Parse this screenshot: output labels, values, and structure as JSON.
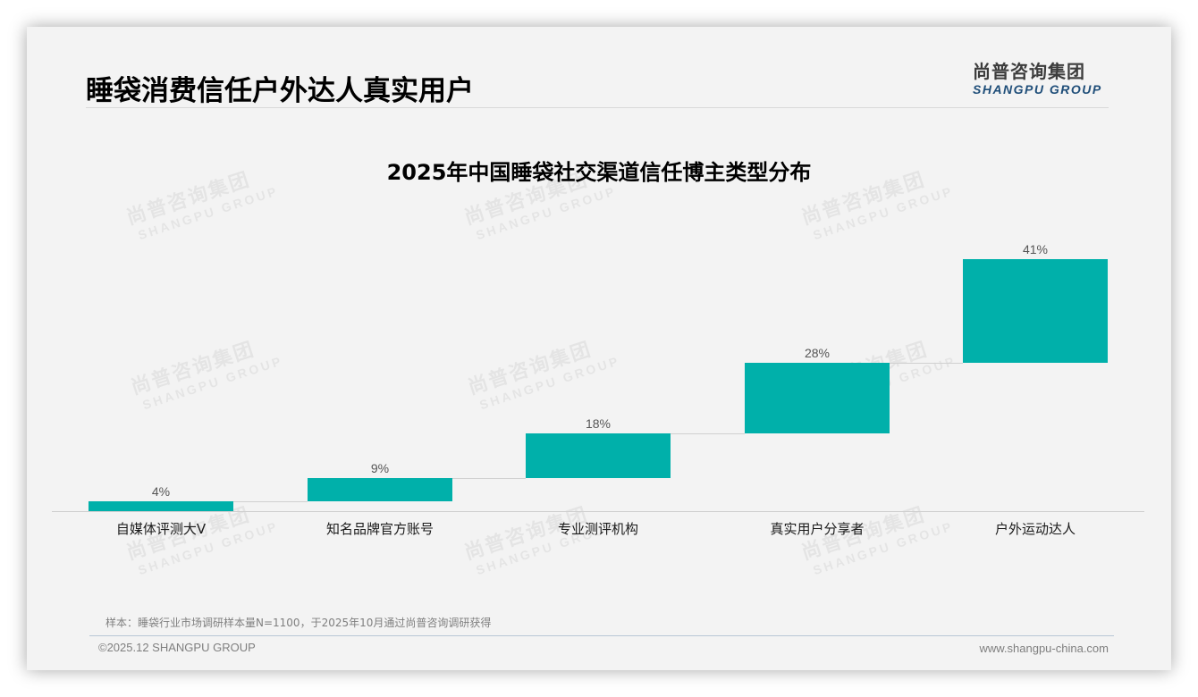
{
  "page": {
    "title": "睡袋消费信任户外达人真实用户",
    "logo": {
      "cn": "尚普咨询集团",
      "en": "SHANGPU GROUP"
    },
    "note": "样本：睡袋行业市场调研样本量N=1100，于2025年10月通过尚普咨询调研获得",
    "copyright": "©2025.12 SHANGPU GROUP",
    "url": "www.shangpu-china.com",
    "watermark": {
      "cn": "尚普咨询集团",
      "en": "SHANGPU GROUP"
    },
    "colors": {
      "bar": "#00b0aa",
      "logo_en": "#1f4e79"
    }
  },
  "chart_data": {
    "type": "bar",
    "subtype": "waterfall",
    "title": "2025年中国睡袋社交渠道信任博主类型分布",
    "categories": [
      "自媒体评测大V",
      "知名品牌官方账号",
      "专业测评机构",
      "真实用户分享者",
      "户外运动达人"
    ],
    "values": [
      4,
      9,
      18,
      28,
      41
    ],
    "labels": [
      "4%",
      "9%",
      "18%",
      "28%",
      "41%"
    ],
    "unit": "%",
    "xlabel": "",
    "ylabel": "",
    "grid": false,
    "legend": "none",
    "connectors": true
  }
}
